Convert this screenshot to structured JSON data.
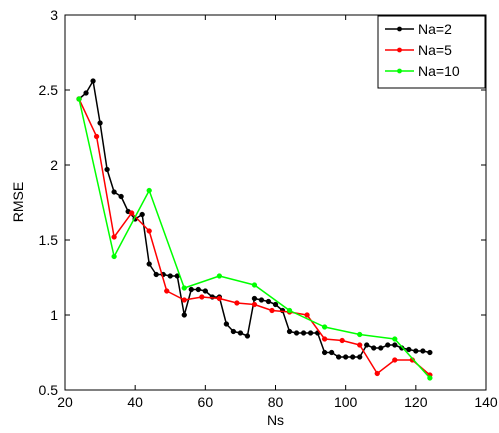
{
  "chart_data": {
    "type": "line",
    "title": "",
    "xlabel": "Ns",
    "ylabel": "RMSE",
    "xlim": [
      20,
      140
    ],
    "ylim": [
      0.5,
      3
    ],
    "xticks": [
      "20",
      "40",
      "60",
      "80",
      "100",
      "120",
      "140"
    ],
    "yticks": [
      "0.5",
      "1",
      "1.5",
      "2",
      "2.5",
      "3"
    ],
    "grid": false,
    "legend_position": "top-right",
    "series": [
      {
        "name": "Na=2",
        "color": "#000000",
        "x": [
          24,
          26,
          28,
          30,
          32,
          34,
          36,
          38,
          40,
          42,
          44,
          46,
          48,
          50,
          52,
          54,
          56,
          58,
          60,
          62,
          64,
          66,
          68,
          70,
          72,
          74,
          76,
          78,
          80,
          82,
          84,
          86,
          88,
          90,
          92,
          94,
          96,
          98,
          100,
          102,
          104,
          106,
          108,
          110,
          112,
          114,
          116,
          118,
          120,
          122,
          124
        ],
        "y": [
          2.44,
          2.48,
          2.56,
          2.28,
          1.97,
          1.82,
          1.79,
          1.69,
          1.64,
          1.67,
          1.34,
          1.27,
          1.27,
          1.26,
          1.26,
          1.0,
          1.17,
          1.17,
          1.16,
          1.12,
          1.12,
          0.94,
          0.89,
          0.88,
          0.86,
          1.11,
          1.1,
          1.09,
          1.07,
          1.03,
          0.89,
          0.88,
          0.88,
          0.88,
          0.88,
          0.75,
          0.75,
          0.72,
          0.72,
          0.72,
          0.72,
          0.8,
          0.78,
          0.78,
          0.8,
          0.8,
          0.78,
          0.77,
          0.76,
          0.76,
          0.75
        ]
      },
      {
        "name": "Na=5",
        "color": "#ff0000",
        "x": [
          24,
          29,
          34,
          39,
          44,
          49,
          54,
          59,
          64,
          69,
          74,
          79,
          84,
          89,
          94,
          99,
          104,
          109,
          114,
          119,
          124
        ],
        "y": [
          2.44,
          2.19,
          1.52,
          1.68,
          1.56,
          1.16,
          1.1,
          1.12,
          1.11,
          1.08,
          1.07,
          1.03,
          1.02,
          1.0,
          0.84,
          0.83,
          0.8,
          0.61,
          0.7,
          0.7,
          0.6
        ]
      },
      {
        "name": "Na=10",
        "color": "#00ff00",
        "x": [
          24,
          34,
          44,
          54,
          64,
          74,
          84,
          94,
          104,
          114,
          124
        ],
        "y": [
          2.44,
          1.39,
          1.83,
          1.18,
          1.26,
          1.2,
          1.03,
          0.92,
          0.87,
          0.84,
          0.58
        ]
      }
    ]
  }
}
